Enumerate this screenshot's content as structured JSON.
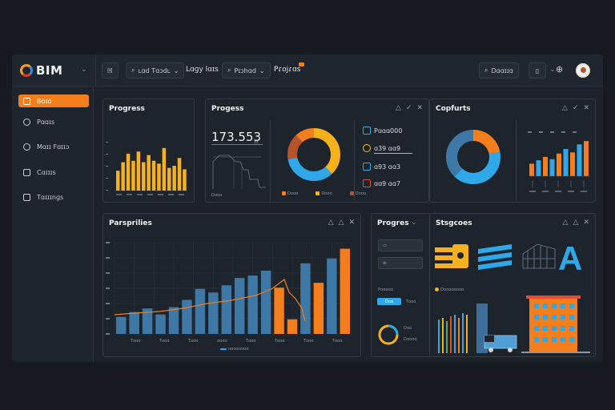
{
  "app": {
    "logo": "BIM"
  },
  "topbar": {
    "btn1": "ℍ",
    "btn2": "ʟɑd Tɑɔdʟ",
    "text1": "Lɑɡy lɑɪs",
    "btn3": "Pɪɔhɑd",
    "text2": "Pɾojɾɑs",
    "search": "Dɑɑɪɪɑ"
  },
  "sidebar": {
    "items": [
      {
        "label": "Bɑɪɑ"
      },
      {
        "label": "Pɑɑɪs"
      },
      {
        "label": "Mɑɪɪ Fɑɪɪɔ"
      },
      {
        "label": "Cɑɪɪɪs"
      },
      {
        "label": "Tɑɪɪɪnɡs"
      }
    ]
  },
  "panels": {
    "progress1": {
      "title": "Progress"
    },
    "progress2": {
      "title": "Progess",
      "big_value": "173.553",
      "unit": "ɪɪɪ",
      "caption": "Dɑɑɑ",
      "metrics": [
        {
          "value": "Pɑɑɑ000",
          "color": "#2fa8ea"
        },
        {
          "value": "ɑ39 ɑɑ9",
          "color": "#f7c21b"
        },
        {
          "value": "ɑ93 ɑɑ3",
          "color": "#2fa8ea"
        },
        {
          "value": "ɑɑ9 ɑɑ7",
          "color": "#e74d2c"
        }
      ],
      "legend": [
        "Dɑɑɑ",
        "Dɑɑɑ",
        "Dɑɑɑ"
      ]
    },
    "captures": {
      "title": "Copfurts"
    },
    "parsprilies": {
      "title": "Parsprilies",
      "legend": "ɑɑɑɑɑɑɑɑ",
      "x_labels": [
        "Tɑɑɑ",
        "Tɑɑɑ",
        "Tɑɑɑ",
        "ɑɑɑɑ",
        "Tɑɑɑ",
        "Tɑɑɑ",
        "Tɑɑɑ",
        "Tɑɑɑ"
      ]
    },
    "progress3": {
      "title": "Progres",
      "sub": "Pɑɑɑɑɑ",
      "toggle_on": "Dɑɑ",
      "toggle_off": "Tɑɑɑ",
      "donut_labels": [
        "Dɑɑ",
        "Dɑɑɑɑ"
      ]
    },
    "stats": {
      "title": "Stsgcoes",
      "legend": "Oɑɑɑɑɑɑɑɑ"
    }
  },
  "colors": {
    "accent": "#f47d1c",
    "yellow": "#f7b21b",
    "blue": "#2fa8ea",
    "steel": "#3d78a6"
  },
  "chart_data": [
    {
      "type": "bar",
      "title": "Progress",
      "values": [
        28,
        40,
        52,
        42,
        55,
        40,
        50,
        42,
        38,
        60,
        32,
        35,
        46,
        30
      ]
    },
    {
      "type": "pie",
      "title": "Progess",
      "values": [
        38,
        34,
        16,
        12
      ]
    },
    {
      "type": "pie",
      "title": "Copfurts",
      "values": [
        22,
        40,
        38
      ]
    },
    {
      "type": "bar",
      "title": "Copfurts",
      "values": [
        22,
        28,
        34,
        30,
        40,
        48,
        42,
        56,
        62
      ]
    },
    {
      "type": "bar",
      "title": "Parsprilies",
      "series": [
        {
          "values": [
            14,
            18,
            21,
            16,
            22,
            28,
            37,
            34,
            40,
            46,
            48,
            52,
            38,
            12,
            58,
            42,
            62,
            70
          ]
        }
      ]
    }
  ]
}
